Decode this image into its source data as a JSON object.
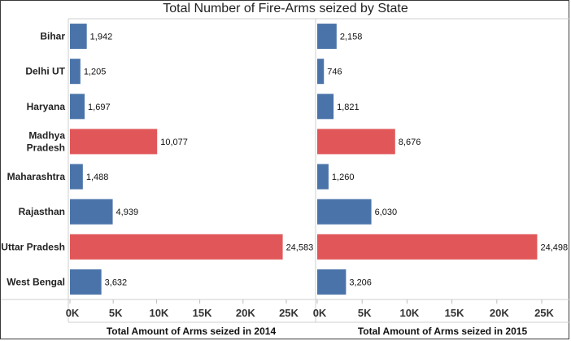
{
  "chart_data": {
    "type": "bar",
    "orientation": "horizontal",
    "title": "Total Number of Fire-Arms seized by State",
    "categories": [
      "Bihar",
      "Delhi UT",
      "Haryana",
      "Madhya Pradesh",
      "Maharashtra",
      "Rajasthan",
      "Uttar Pradesh",
      "West Bengal"
    ],
    "panels": [
      {
        "xlabel": "Total Amount of Arms seized in 2014",
        "values": [
          1942,
          1205,
          1697,
          10077,
          1488,
          4939,
          24583,
          3632
        ],
        "value_labels": [
          "1,942",
          "1,205",
          "1,697",
          "10,077",
          "1,488",
          "4,939",
          "24,583",
          "3,632"
        ]
      },
      {
        "xlabel": "Total Amount of Arms seized in 2015",
        "values": [
          2158,
          746,
          1821,
          8676,
          1260,
          6030,
          24498,
          3206
        ],
        "value_labels": [
          "2,158",
          "746",
          "1,821",
          "8,676",
          "1,260",
          "6,030",
          "24,498",
          "3,206"
        ]
      }
    ],
    "xlim": [
      0,
      29000
    ],
    "xticks": [
      0,
      5000,
      10000,
      15000,
      20000,
      25000
    ],
    "xtick_labels": [
      "0K",
      "5K",
      "10K",
      "15K",
      "20K",
      "25K"
    ],
    "grid": false,
    "colors": {
      "default": "#4a74a9",
      "highlight": "#e15759",
      "highlighted_categories": [
        "Madhya Pradesh",
        "Uttar Pradesh"
      ]
    }
  }
}
